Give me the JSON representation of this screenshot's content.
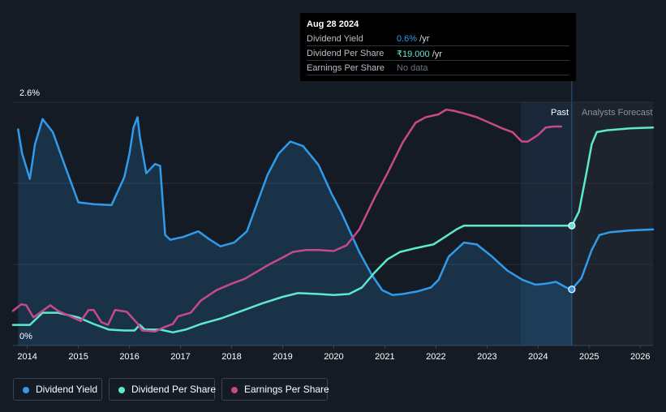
{
  "tooltip": {
    "date": "Aug 28 2024",
    "rows": [
      {
        "label": "Dividend Yield",
        "value": "0.6%",
        "unit": " /yr",
        "color": "#2f9bea"
      },
      {
        "label": "Dividend Per Share",
        "value": "₹19.000",
        "unit": " /yr",
        "color": "#5ee8d0"
      },
      {
        "label": "Earnings Per Share",
        "value": "No data",
        "unit": "",
        "color": "#6b7280"
      }
    ]
  },
  "legend": [
    {
      "label": "Dividend Yield",
      "color": "#2f9bea"
    },
    {
      "label": "Dividend Per Share",
      "color": "#5ee8d0"
    },
    {
      "label": "Earnings Per Share",
      "color": "#c8498a"
    }
  ],
  "chart_data": {
    "type": "line",
    "ylabel_top": "2.6%",
    "ylabel_bottom": "0%",
    "ylim": [
      0,
      2.6
    ],
    "xlim": [
      2013.72,
      2026.25
    ],
    "x_ticks": [
      "2014",
      "2015",
      "2016",
      "2017",
      "2018",
      "2019",
      "2020",
      "2021",
      "2022",
      "2023",
      "2024",
      "2025",
      "2026"
    ],
    "past_label": "Past",
    "forecast_label": "Analysts Forecast",
    "forecast_start": 2024.66,
    "colors": {
      "yield": "#2f9bea",
      "dps": "#5ee8d0",
      "eps": "#c8498a",
      "past_band": "#1b2c3e",
      "forecast_band": "#1e242e",
      "grid": "#2a313c"
    },
    "grid": true,
    "series": [
      {
        "name": "Dividend Yield",
        "key": "yield",
        "unit": "%",
        "filled": true,
        "points": [
          [
            2013.82,
            2.31
          ],
          [
            2013.9,
            2.05
          ],
          [
            2014.05,
            1.78
          ],
          [
            2014.15,
            2.15
          ],
          [
            2014.3,
            2.42
          ],
          [
            2014.5,
            2.28
          ],
          [
            2014.75,
            1.9
          ],
          [
            2015.0,
            1.53
          ],
          [
            2015.3,
            1.51
          ],
          [
            2015.65,
            1.5
          ],
          [
            2015.9,
            1.8
          ],
          [
            2016.0,
            2.05
          ],
          [
            2016.08,
            2.33
          ],
          [
            2016.16,
            2.44
          ],
          [
            2016.2,
            2.24
          ],
          [
            2016.33,
            1.84
          ],
          [
            2016.5,
            1.94
          ],
          [
            2016.6,
            1.92
          ],
          [
            2016.7,
            1.18
          ],
          [
            2016.8,
            1.13
          ],
          [
            2017.05,
            1.16
          ],
          [
            2017.35,
            1.22
          ],
          [
            2017.55,
            1.14
          ],
          [
            2017.78,
            1.06
          ],
          [
            2018.05,
            1.1
          ],
          [
            2018.3,
            1.22
          ],
          [
            2018.5,
            1.52
          ],
          [
            2018.7,
            1.82
          ],
          [
            2018.92,
            2.05
          ],
          [
            2019.15,
            2.18
          ],
          [
            2019.4,
            2.13
          ],
          [
            2019.7,
            1.93
          ],
          [
            2019.95,
            1.63
          ],
          [
            2020.15,
            1.42
          ],
          [
            2020.3,
            1.24
          ],
          [
            2020.5,
            1.0
          ],
          [
            2020.75,
            0.75
          ],
          [
            2020.95,
            0.59
          ],
          [
            2021.15,
            0.54
          ],
          [
            2021.35,
            0.55
          ],
          [
            2021.65,
            0.58
          ],
          [
            2021.9,
            0.62
          ],
          [
            2022.05,
            0.7
          ],
          [
            2022.25,
            0.95
          ],
          [
            2022.55,
            1.1
          ],
          [
            2022.8,
            1.08
          ],
          [
            2023.1,
            0.95
          ],
          [
            2023.4,
            0.8
          ],
          [
            2023.7,
            0.7
          ],
          [
            2023.95,
            0.65
          ],
          [
            2024.15,
            0.66
          ],
          [
            2024.35,
            0.68
          ],
          [
            2024.55,
            0.62
          ],
          [
            2024.66,
            0.6
          ],
          [
            2024.85,
            0.72
          ],
          [
            2025.05,
            1.02
          ],
          [
            2025.2,
            1.18
          ],
          [
            2025.4,
            1.21
          ],
          [
            2025.8,
            1.23
          ],
          [
            2026.25,
            1.24
          ]
        ]
      },
      {
        "name": "Dividend Per Share",
        "key": "dps",
        "filled": false,
        "points": [
          [
            2013.72,
            0.22
          ],
          [
            2014.05,
            0.22
          ],
          [
            2014.3,
            0.35
          ],
          [
            2014.6,
            0.35
          ],
          [
            2015.0,
            0.3
          ],
          [
            2015.3,
            0.23
          ],
          [
            2015.6,
            0.17
          ],
          [
            2015.9,
            0.16
          ],
          [
            2016.1,
            0.16
          ],
          [
            2016.2,
            0.22
          ],
          [
            2016.3,
            0.17
          ],
          [
            2016.6,
            0.17
          ],
          [
            2016.85,
            0.14
          ],
          [
            2017.1,
            0.17
          ],
          [
            2017.4,
            0.23
          ],
          [
            2017.8,
            0.29
          ],
          [
            2018.2,
            0.37
          ],
          [
            2018.6,
            0.45
          ],
          [
            2019.0,
            0.52
          ],
          [
            2019.3,
            0.56
          ],
          [
            2019.7,
            0.55
          ],
          [
            2020.0,
            0.54
          ],
          [
            2020.3,
            0.55
          ],
          [
            2020.55,
            0.62
          ],
          [
            2020.8,
            0.78
          ],
          [
            2021.05,
            0.92
          ],
          [
            2021.3,
            1.0
          ],
          [
            2021.6,
            1.04
          ],
          [
            2021.95,
            1.08
          ],
          [
            2022.15,
            1.15
          ],
          [
            2022.4,
            1.24
          ],
          [
            2022.55,
            1.28
          ],
          [
            2023.0,
            1.28
          ],
          [
            2023.5,
            1.28
          ],
          [
            2024.0,
            1.28
          ],
          [
            2024.66,
            1.28
          ],
          [
            2024.8,
            1.43
          ],
          [
            2024.95,
            1.85
          ],
          [
            2025.05,
            2.15
          ],
          [
            2025.15,
            2.28
          ],
          [
            2025.35,
            2.3
          ],
          [
            2025.8,
            2.32
          ],
          [
            2026.25,
            2.33
          ]
        ]
      },
      {
        "name": "Earnings Per Share",
        "key": "eps",
        "filled": false,
        "points": [
          [
            2013.72,
            0.37
          ],
          [
            2013.88,
            0.44
          ],
          [
            2013.98,
            0.43
          ],
          [
            2014.12,
            0.3
          ],
          [
            2014.3,
            0.37
          ],
          [
            2014.45,
            0.43
          ],
          [
            2014.6,
            0.37
          ],
          [
            2014.85,
            0.31
          ],
          [
            2015.05,
            0.26
          ],
          [
            2015.2,
            0.38
          ],
          [
            2015.3,
            0.38
          ],
          [
            2015.45,
            0.25
          ],
          [
            2015.58,
            0.22
          ],
          [
            2015.72,
            0.38
          ],
          [
            2015.95,
            0.36
          ],
          [
            2016.15,
            0.24
          ],
          [
            2016.25,
            0.16
          ],
          [
            2016.5,
            0.15
          ],
          [
            2016.7,
            0.2
          ],
          [
            2016.85,
            0.23
          ],
          [
            2016.95,
            0.31
          ],
          [
            2017.2,
            0.35
          ],
          [
            2017.4,
            0.48
          ],
          [
            2017.7,
            0.59
          ],
          [
            2018.0,
            0.66
          ],
          [
            2018.25,
            0.71
          ],
          [
            2018.5,
            0.79
          ],
          [
            2018.75,
            0.87
          ],
          [
            2019.0,
            0.94
          ],
          [
            2019.2,
            1.0
          ],
          [
            2019.45,
            1.02
          ],
          [
            2019.7,
            1.02
          ],
          [
            2020.0,
            1.01
          ],
          [
            2020.25,
            1.07
          ],
          [
            2020.5,
            1.24
          ],
          [
            2020.8,
            1.58
          ],
          [
            2021.05,
            1.84
          ],
          [
            2021.35,
            2.17
          ],
          [
            2021.6,
            2.38
          ],
          [
            2021.8,
            2.44
          ],
          [
            2022.05,
            2.47
          ],
          [
            2022.2,
            2.52
          ],
          [
            2022.33,
            2.51
          ],
          [
            2022.55,
            2.48
          ],
          [
            2022.8,
            2.44
          ],
          [
            2023.05,
            2.38
          ],
          [
            2023.3,
            2.32
          ],
          [
            2023.5,
            2.28
          ],
          [
            2023.68,
            2.18
          ],
          [
            2023.8,
            2.18
          ],
          [
            2024.0,
            2.25
          ],
          [
            2024.15,
            2.33
          ],
          [
            2024.3,
            2.34
          ],
          [
            2024.45,
            2.34
          ]
        ]
      }
    ],
    "markers": [
      {
        "series": "dps",
        "x": 2024.66,
        "y": 1.28
      },
      {
        "series": "yield",
        "x": 2024.66,
        "y": 0.6
      }
    ]
  }
}
